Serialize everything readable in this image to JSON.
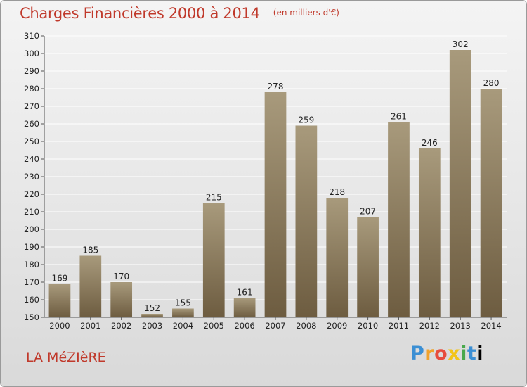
{
  "title": "Charges Financières 2000 à 2014",
  "subtitle": "(en milliers d'€)",
  "commune": "LA MéZIèRE",
  "logo_text": "Proxiti",
  "colors": {
    "bar_top": "#a89a7c",
    "bar_bottom": "#6d5c40",
    "title": "#c0392b",
    "grid": "#ffffff"
  },
  "chart_data": {
    "type": "bar",
    "title": "Charges Financières 2000 à 2014",
    "subtitle": "(en milliers d'€)",
    "categories": [
      "2000",
      "2001",
      "2002",
      "2003",
      "2004",
      "2005",
      "2006",
      "2007",
      "2008",
      "2009",
      "2010",
      "2011",
      "2012",
      "2013",
      "2014"
    ],
    "values": [
      169,
      185,
      170,
      152,
      155,
      215,
      161,
      278,
      259,
      218,
      207,
      261,
      246,
      302,
      280
    ],
    "ylim": [
      150,
      310
    ],
    "yticks": [
      150,
      160,
      170,
      180,
      190,
      200,
      210,
      220,
      230,
      240,
      250,
      260,
      270,
      280,
      290,
      300,
      310
    ],
    "grid": true,
    "data_labels": true
  }
}
